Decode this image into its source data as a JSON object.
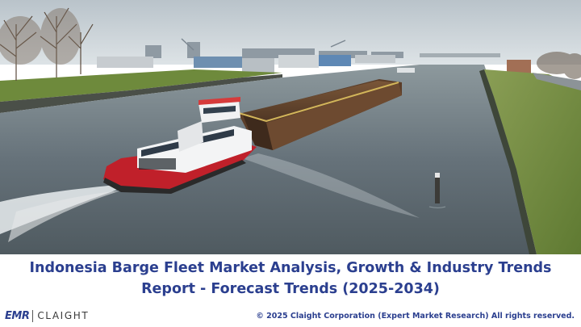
{
  "title": {
    "line1": "Indonesia Barge Fleet Market Analysis, Growth & Industry Trends",
    "line2": "Report - Forecast Trends (2025-2034)"
  },
  "logo": {
    "emr": "EMR",
    "claight": "CLAIGHT"
  },
  "footer": {
    "copyright": "© 2025 Claight Corporation (Expert Market Research) All rights reserved."
  },
  "colors": {
    "title": "#2b3f8f",
    "water": "#5f6c70",
    "grass": "#6f8a3d",
    "sky": "#c9d2d8"
  }
}
